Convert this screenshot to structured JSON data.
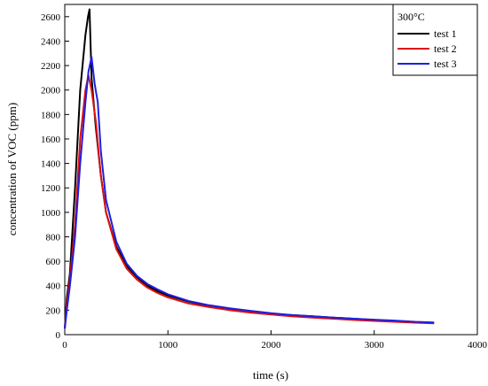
{
  "chart_data": {
    "type": "line",
    "xlabel": "time (s)",
    "ylabel": "concentration of VOC (ppm)",
    "xlim": [
      0,
      4000
    ],
    "ylim": [
      0,
      2700
    ],
    "xticks": [
      0,
      1000,
      2000,
      3000,
      4000
    ],
    "yticks": [
      0,
      200,
      400,
      600,
      800,
      1000,
      1200,
      1400,
      1600,
      1800,
      2000,
      2200,
      2400,
      2600
    ],
    "grid": false,
    "legend": {
      "title": "300°C",
      "position": "top-right"
    },
    "series": [
      {
        "name": "test 1",
        "color": "#000000",
        "x": [
          0,
          20,
          50,
          100,
          150,
          200,
          225,
          240,
          260,
          300,
          350,
          400,
          500,
          600,
          700,
          800,
          900,
          1000,
          1200,
          1400,
          1600,
          1800,
          2000,
          2200,
          2400,
          2600,
          2800,
          3000,
          3200,
          3400,
          3580
        ],
        "y": [
          50,
          300,
          500,
          1200,
          2000,
          2450,
          2600,
          2660,
          2100,
          1700,
          1300,
          1000,
          720,
          560,
          470,
          400,
          355,
          320,
          270,
          235,
          210,
          190,
          170,
          160,
          150,
          140,
          130,
          120,
          110,
          100,
          95
        ]
      },
      {
        "name": "test 2",
        "color": "#e01010",
        "x": [
          0,
          20,
          50,
          100,
          150,
          200,
          230,
          260,
          300,
          350,
          400,
          500,
          600,
          700,
          800,
          900,
          1000,
          1200,
          1400,
          1600,
          1800,
          2000,
          2200,
          2400,
          2600,
          2800,
          3000,
          3200,
          3400,
          3580
        ],
        "y": [
          50,
          250,
          450,
          900,
          1600,
          2000,
          2120,
          2000,
          1750,
          1300,
          1000,
          700,
          540,
          450,
          385,
          340,
          305,
          255,
          225,
          200,
          180,
          165,
          150,
          140,
          130,
          120,
          112,
          105,
          98,
          92
        ]
      },
      {
        "name": "test 3",
        "color": "#1f1fe0",
        "x": [
          0,
          20,
          50,
          100,
          150,
          200,
          230,
          260,
          290,
          320,
          350,
          400,
          500,
          600,
          700,
          800,
          900,
          1000,
          1200,
          1400,
          1600,
          1800,
          2000,
          2200,
          2400,
          2600,
          2800,
          3000,
          3200,
          3400,
          3580
        ],
        "y": [
          50,
          200,
          400,
          800,
          1400,
          1900,
          2150,
          2270,
          2050,
          1900,
          1500,
          1100,
          760,
          580,
          480,
          415,
          370,
          330,
          275,
          240,
          215,
          195,
          175,
          160,
          150,
          140,
          130,
          122,
          115,
          105,
          100
        ]
      }
    ]
  }
}
